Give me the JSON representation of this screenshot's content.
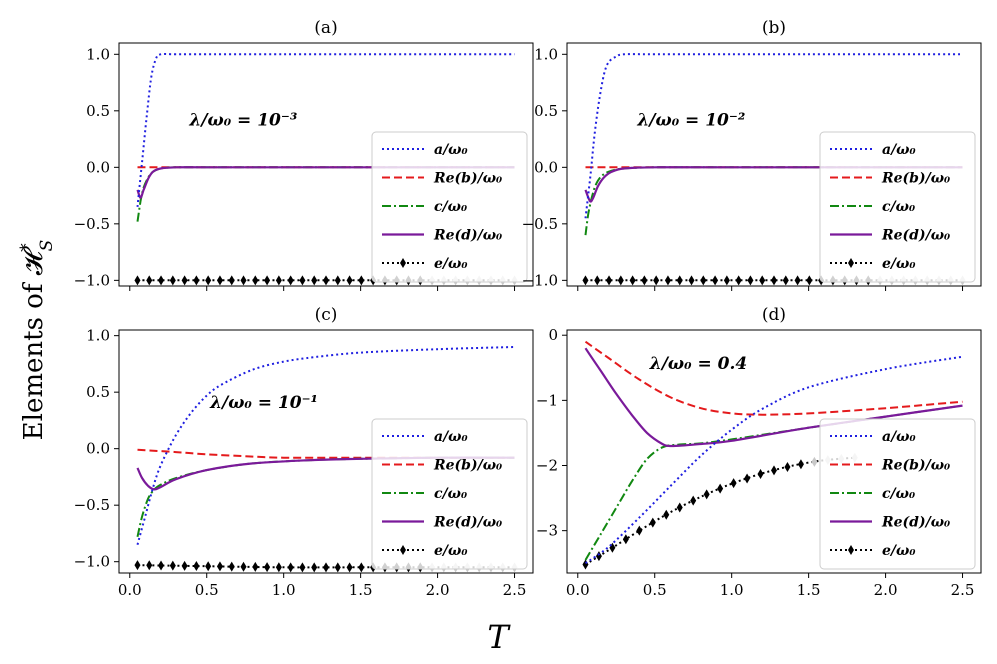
{
  "figure": {
    "ylabel": "Elements of 𝓗",
    "ylabel_sup": "*",
    "ylabel_sub": "S",
    "xlabel": "T"
  },
  "chart_data": [
    {
      "type": "line",
      "title": "(a)",
      "annotation": "λ/ω₀ = 10⁻³",
      "xlim": [
        -0.07,
        2.62
      ],
      "ylim": [
        -1.05,
        1.1
      ],
      "xticks": [
        0.0,
        0.5,
        1.0,
        1.5,
        2.0,
        2.5
      ],
      "xtick_labels": [],
      "yticks": [
        1.0,
        0.5,
        0.0,
        -0.5,
        -1.0
      ],
      "ytick_labels": [
        "1.0",
        "0.5",
        "0.0",
        "−0.5",
        "−1.0"
      ],
      "legend": "lower-right",
      "series": [
        {
          "name": "a/ω₀",
          "style": "dotted-blue",
          "x": [
            0.05,
            0.08,
            0.11,
            0.14,
            0.17,
            0.2,
            0.3,
            0.5,
            1.0,
            1.5,
            2.0,
            2.5
          ],
          "y": [
            -0.35,
            0.05,
            0.45,
            0.8,
            0.96,
            1.0,
            1.0,
            1.0,
            1.0,
            1.0,
            1.0,
            1.0
          ]
        },
        {
          "name": "Re(b)/ω₀",
          "style": "dashed-red",
          "x": [
            0.05,
            0.5,
            1.0,
            1.5,
            2.0,
            2.5
          ],
          "y": [
            0.0,
            0.0,
            0.0,
            0.0,
            0.0,
            0.0
          ]
        },
        {
          "name": "c/ω₀",
          "style": "dashdot-green",
          "x": [
            0.05,
            0.07,
            0.09,
            0.12,
            0.15,
            0.2,
            0.3,
            0.5,
            1.0,
            2.5
          ],
          "y": [
            -0.48,
            -0.3,
            -0.18,
            -0.09,
            -0.04,
            -0.01,
            0.0,
            0.0,
            0.0,
            0.0
          ]
        },
        {
          "name": "Re(d)/ω₀",
          "style": "solid-purple",
          "x": [
            0.05,
            0.07,
            0.09,
            0.12,
            0.15,
            0.2,
            0.3,
            0.5,
            1.0,
            2.5
          ],
          "y": [
            -0.2,
            -0.27,
            -0.2,
            -0.1,
            -0.04,
            -0.01,
            0.0,
            0.0,
            0.0,
            0.0
          ]
        },
        {
          "name": "e/ω₀",
          "style": "dotted-diamond-black",
          "x": [
            0.05,
            0.3,
            0.6,
            1.0,
            1.5,
            2.0,
            2.5
          ],
          "y": [
            -1.0,
            -1.0,
            -1.0,
            -1.0,
            -1.0,
            -1.0,
            -1.0
          ]
        }
      ]
    },
    {
      "type": "line",
      "title": "(b)",
      "annotation": "λ/ω₀ = 10⁻²",
      "xlim": [
        -0.07,
        2.62
      ],
      "ylim": [
        -1.05,
        1.1
      ],
      "xticks": [
        0.0,
        0.5,
        1.0,
        1.5,
        2.0,
        2.5
      ],
      "xtick_labels": [],
      "yticks": [
        1.0,
        0.5,
        0.0,
        -0.5,
        -1.0
      ],
      "ytick_labels": [
        "1.0",
        "0.5",
        "0.0",
        "−0.5",
        "−1.0"
      ],
      "legend": "lower-right",
      "series": [
        {
          "name": "a/ω₀",
          "style": "dotted-blue",
          "x": [
            0.05,
            0.08,
            0.11,
            0.14,
            0.17,
            0.2,
            0.25,
            0.3,
            0.5,
            1.0,
            1.5,
            2.0,
            2.5
          ],
          "y": [
            -0.45,
            -0.1,
            0.3,
            0.6,
            0.82,
            0.93,
            0.98,
            1.0,
            1.0,
            1.0,
            1.0,
            1.0,
            1.0
          ]
        },
        {
          "name": "Re(b)/ω₀",
          "style": "dashed-red",
          "x": [
            0.05,
            0.5,
            1.0,
            1.5,
            2.0,
            2.5
          ],
          "y": [
            0.0,
            0.0,
            0.0,
            0.0,
            0.0,
            0.0
          ]
        },
        {
          "name": "c/ω₀",
          "style": "dashdot-green",
          "x": [
            0.05,
            0.07,
            0.1,
            0.13,
            0.17,
            0.22,
            0.3,
            0.5,
            1.0,
            2.5
          ],
          "y": [
            -0.6,
            -0.4,
            -0.22,
            -0.12,
            -0.06,
            -0.03,
            -0.01,
            0.0,
            0.0,
            0.0
          ]
        },
        {
          "name": "Re(d)/ω₀",
          "style": "solid-purple",
          "x": [
            0.05,
            0.08,
            0.1,
            0.13,
            0.17,
            0.22,
            0.3,
            0.5,
            1.0,
            2.5
          ],
          "y": [
            -0.2,
            -0.3,
            -0.27,
            -0.17,
            -0.09,
            -0.04,
            -0.01,
            0.0,
            0.0,
            0.0
          ]
        },
        {
          "name": "e/ω₀",
          "style": "dotted-diamond-black",
          "x": [
            0.05,
            0.3,
            0.6,
            1.0,
            1.5,
            2.0,
            2.5
          ],
          "y": [
            -1.0,
            -1.0,
            -1.0,
            -1.0,
            -1.0,
            -1.0,
            -1.0
          ]
        }
      ]
    },
    {
      "type": "line",
      "title": "(c)",
      "annotation": "λ/ω₀ = 10⁻¹",
      "xlim": [
        -0.07,
        2.62
      ],
      "ylim": [
        -1.1,
        1.05
      ],
      "xticks": [
        0.0,
        0.5,
        1.0,
        1.5,
        2.0,
        2.5
      ],
      "xtick_labels": [
        "0.0",
        "0.5",
        "1.0",
        "1.5",
        "2.0",
        "2.5"
      ],
      "yticks": [
        1.0,
        0.5,
        0.0,
        -0.5,
        -1.0
      ],
      "ytick_labels": [
        "1.0",
        "0.5",
        "0.0",
        "−0.5",
        "−1.0"
      ],
      "legend": "lower-right",
      "series": [
        {
          "name": "a/ω₀",
          "style": "dotted-blue",
          "x": [
            0.05,
            0.1,
            0.15,
            0.2,
            0.3,
            0.4,
            0.5,
            0.6,
            0.8,
            1.0,
            1.2,
            1.5,
            2.0,
            2.5
          ],
          "y": [
            -0.85,
            -0.6,
            -0.35,
            -0.15,
            0.12,
            0.32,
            0.47,
            0.57,
            0.7,
            0.77,
            0.81,
            0.85,
            0.88,
            0.9
          ]
        },
        {
          "name": "Re(b)/ω₀",
          "style": "dashed-red",
          "x": [
            0.05,
            0.3,
            0.5,
            0.8,
            1.0,
            1.5,
            2.0,
            2.5
          ],
          "y": [
            -0.01,
            -0.03,
            -0.05,
            -0.07,
            -0.08,
            -0.08,
            -0.08,
            -0.08
          ]
        },
        {
          "name": "c/ω₀",
          "style": "dashdot-green",
          "x": [
            0.05,
            0.08,
            0.12,
            0.16,
            0.2,
            0.3,
            0.5,
            0.8,
            1.2,
            1.5,
            2.0,
            2.5
          ],
          "y": [
            -0.78,
            -0.6,
            -0.44,
            -0.36,
            -0.32,
            -0.26,
            -0.19,
            -0.13,
            -0.1,
            -0.09,
            -0.08,
            -0.08
          ]
        },
        {
          "name": "Re(d)/ω₀",
          "style": "solid-purple",
          "x": [
            0.05,
            0.08,
            0.12,
            0.16,
            0.2,
            0.3,
            0.5,
            0.8,
            1.2,
            1.5,
            2.0,
            2.5
          ],
          "y": [
            -0.17,
            -0.26,
            -0.33,
            -0.36,
            -0.34,
            -0.27,
            -0.19,
            -0.13,
            -0.1,
            -0.09,
            -0.08,
            -0.08
          ]
        },
        {
          "name": "e/ω₀",
          "style": "dotted-diamond-black",
          "x": [
            0.05,
            0.5,
            1.0,
            1.5,
            2.0,
            2.5
          ],
          "y": [
            -1.03,
            -1.04,
            -1.05,
            -1.05,
            -1.05,
            -1.05
          ]
        }
      ]
    },
    {
      "type": "line",
      "title": "(d)",
      "annotation": "λ/ω₀ = 0.4",
      "xlim": [
        -0.07,
        2.62
      ],
      "ylim": [
        -3.65,
        0.08
      ],
      "xticks": [
        0.0,
        0.5,
        1.0,
        1.5,
        2.0,
        2.5
      ],
      "xtick_labels": [
        "0.0",
        "0.5",
        "1.0",
        "1.5",
        "2.0",
        "2.5"
      ],
      "yticks": [
        0,
        -1,
        -2,
        -3
      ],
      "ytick_labels": [
        "0",
        "−1",
        "−2",
        "−3"
      ],
      "legend": "lower-right",
      "series": [
        {
          "name": "a/ω₀",
          "style": "dotted-blue",
          "x": [
            0.05,
            0.2,
            0.4,
            0.6,
            0.8,
            1.0,
            1.2,
            1.5,
            2.0,
            2.5
          ],
          "y": [
            -3.5,
            -3.25,
            -2.8,
            -2.32,
            -1.85,
            -1.45,
            -1.13,
            -0.8,
            -0.52,
            -0.33
          ]
        },
        {
          "name": "Re(b)/ω₀",
          "style": "dashed-red",
          "x": [
            0.05,
            0.2,
            0.4,
            0.6,
            0.8,
            1.0,
            1.2,
            1.5,
            2.0,
            2.5
          ],
          "y": [
            -0.1,
            -0.35,
            -0.68,
            -0.95,
            -1.12,
            -1.2,
            -1.22,
            -1.2,
            -1.12,
            -1.02
          ]
        },
        {
          "name": "c/ω₀",
          "style": "dashdot-green",
          "x": [
            0.05,
            0.15,
            0.25,
            0.35,
            0.45,
            0.55,
            0.65,
            0.8,
            1.0,
            1.5,
            2.0,
            2.5
          ],
          "y": [
            -3.45,
            -3.05,
            -2.65,
            -2.25,
            -1.9,
            -1.72,
            -1.68,
            -1.66,
            -1.6,
            -1.42,
            -1.25,
            -1.08
          ]
        },
        {
          "name": "Re(d)/ω₀",
          "style": "solid-purple",
          "x": [
            0.05,
            0.15,
            0.25,
            0.35,
            0.45,
            0.55,
            0.6,
            0.7,
            0.8,
            1.0,
            1.5,
            2.0,
            2.5
          ],
          "y": [
            -0.2,
            -0.55,
            -0.9,
            -1.22,
            -1.5,
            -1.67,
            -1.7,
            -1.69,
            -1.67,
            -1.62,
            -1.42,
            -1.25,
            -1.08
          ]
        },
        {
          "name": "e/ω₀",
          "style": "dotted-diamond-black",
          "x": [
            0.05,
            0.2,
            0.4,
            0.6,
            0.8,
            1.0,
            1.2,
            1.4,
            1.6,
            1.8
          ],
          "y": [
            -3.52,
            -3.3,
            -3.0,
            -2.72,
            -2.48,
            -2.28,
            -2.12,
            -2.0,
            -1.92,
            -1.88
          ]
        }
      ]
    }
  ],
  "legend_entries": [
    "a/ω₀",
    "Re(b)/ω₀",
    "c/ω₀",
    "Re(d)/ω₀",
    "e/ω₀"
  ],
  "colors": {
    "a": "#1f1fe0",
    "b": "#e41a1c",
    "c": "#118811",
    "d": "#7a1a9a",
    "e": "#000000",
    "diamond_fade": "#c8c8c8"
  }
}
